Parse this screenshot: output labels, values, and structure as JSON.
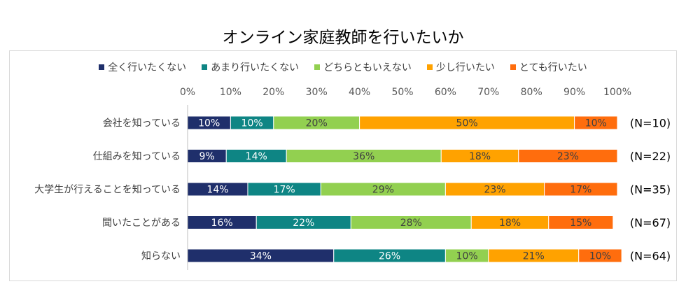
{
  "chart_data": {
    "type": "bar",
    "orientation": "horizontal",
    "stacked": true,
    "percent": true,
    "title": "オンライン家庭教師を行いたいか",
    "xlim": [
      0,
      100
    ],
    "x_ticks": [
      "0%",
      "10%",
      "20%",
      "30%",
      "40%",
      "50%",
      "60%",
      "70%",
      "80%",
      "90%",
      "100%"
    ],
    "legend_position": "top",
    "grid": false,
    "categories": [
      "会社を知っている",
      "仕組みを知っている",
      "大学生が行えることを知っている",
      "聞いたことがある",
      "知らない"
    ],
    "n_labels": [
      "(N=10)",
      "(N=22)",
      "(N=35)",
      "(N=67)",
      "(N=64)"
    ],
    "series": [
      {
        "name": "全く行いたくない",
        "color": "#1f2f6b",
        "values": [
          10,
          9,
          14,
          16,
          34
        ],
        "labels": [
          "10%",
          "9%",
          "14%",
          "16%",
          "34%"
        ]
      },
      {
        "name": "あまり行いたくない",
        "color": "#0e8584",
        "values": [
          10,
          14,
          17,
          22,
          26
        ],
        "labels": [
          "10%",
          "14%",
          "17%",
          "22%",
          "26%"
        ]
      },
      {
        "name": "どちらともいえない",
        "color": "#92d050",
        "values": [
          20,
          36,
          29,
          28,
          10
        ],
        "labels": [
          "20%",
          "36%",
          "29%",
          "28%",
          "10%"
        ]
      },
      {
        "name": "少し行いたい",
        "color": "#ffa200",
        "values": [
          50,
          18,
          23,
          18,
          21
        ],
        "labels": [
          "50%",
          "18%",
          "23%",
          "18%",
          "21%"
        ]
      },
      {
        "name": "とても行いたい",
        "color": "#ff6d0d",
        "values": [
          10,
          23,
          17,
          15,
          10
        ],
        "labels": [
          "10%",
          "23%",
          "17%",
          "15%",
          "10%"
        ]
      }
    ]
  }
}
